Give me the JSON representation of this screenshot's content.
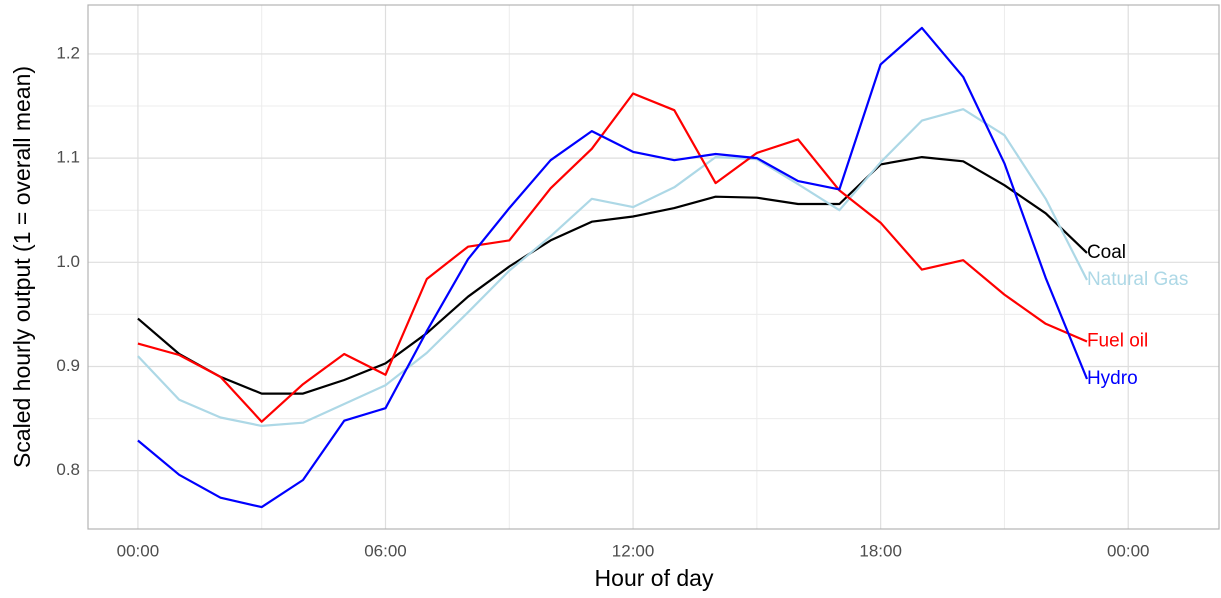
{
  "chart_data": {
    "type": "line",
    "x": [
      0,
      1,
      2,
      3,
      4,
      5,
      6,
      7,
      8,
      9,
      10,
      11,
      12,
      13,
      14,
      15,
      16,
      17,
      18,
      19,
      20,
      21,
      22,
      23
    ],
    "xlabel": "Hour of day",
    "ylabel": "Scaled hourly output (1 = overall mean)",
    "xlim": [
      -1.21,
      26.2
    ],
    "xticks": [
      {
        "value": 0,
        "label": "00:00"
      },
      {
        "value": 6,
        "label": "06:00"
      },
      {
        "value": 12,
        "label": "12:00"
      },
      {
        "value": 18,
        "label": "18:00"
      },
      {
        "value": 24,
        "label": "00:00"
      }
    ],
    "ylim": [
      0.744,
      1.247
    ],
    "yticks": [
      0.8,
      0.9,
      {
        "value": 1.0,
        "label": "1.0"
      },
      1.1,
      1.2
    ],
    "grid": true,
    "series": [
      {
        "name": "Coal",
        "color": "#000000",
        "values": [
          0.946,
          0.912,
          0.89,
          0.874,
          0.874,
          0.887,
          0.903,
          0.932,
          0.967,
          0.996,
          1.021,
          1.039,
          1.044,
          1.052,
          1.063,
          1.062,
          1.056,
          1.056,
          1.094,
          1.101,
          1.097,
          1.074,
          1.047,
          1.009
        ]
      },
      {
        "name": "Natural Gas",
        "color": "#add8e6",
        "values": [
          0.91,
          0.868,
          0.851,
          0.843,
          0.846,
          0.864,
          0.882,
          0.913,
          0.952,
          0.992,
          1.025,
          1.061,
          1.053,
          1.072,
          1.101,
          1.099,
          1.075,
          1.05,
          1.096,
          1.136,
          1.147,
          1.122,
          1.061,
          0.983
        ]
      },
      {
        "name": "Fuel oil",
        "color": "#ff0000",
        "values": [
          0.922,
          0.911,
          0.89,
          0.847,
          0.883,
          0.912,
          0.892,
          0.984,
          1.015,
          1.021,
          1.071,
          1.109,
          1.162,
          1.146,
          1.076,
          1.105,
          1.118,
          1.069,
          1.038,
          0.993,
          1.002,
          0.969,
          0.941,
          0.924
        ]
      },
      {
        "name": "Hydro",
        "color": "#0000ff",
        "values": [
          0.829,
          0.796,
          0.774,
          0.765,
          0.791,
          0.848,
          0.86,
          0.934,
          1.003,
          1.052,
          1.098,
          1.126,
          1.106,
          1.098,
          1.104,
          1.1,
          1.078,
          1.07,
          1.19,
          1.225,
          1.178,
          1.095,
          0.985,
          0.888
        ]
      }
    ]
  }
}
